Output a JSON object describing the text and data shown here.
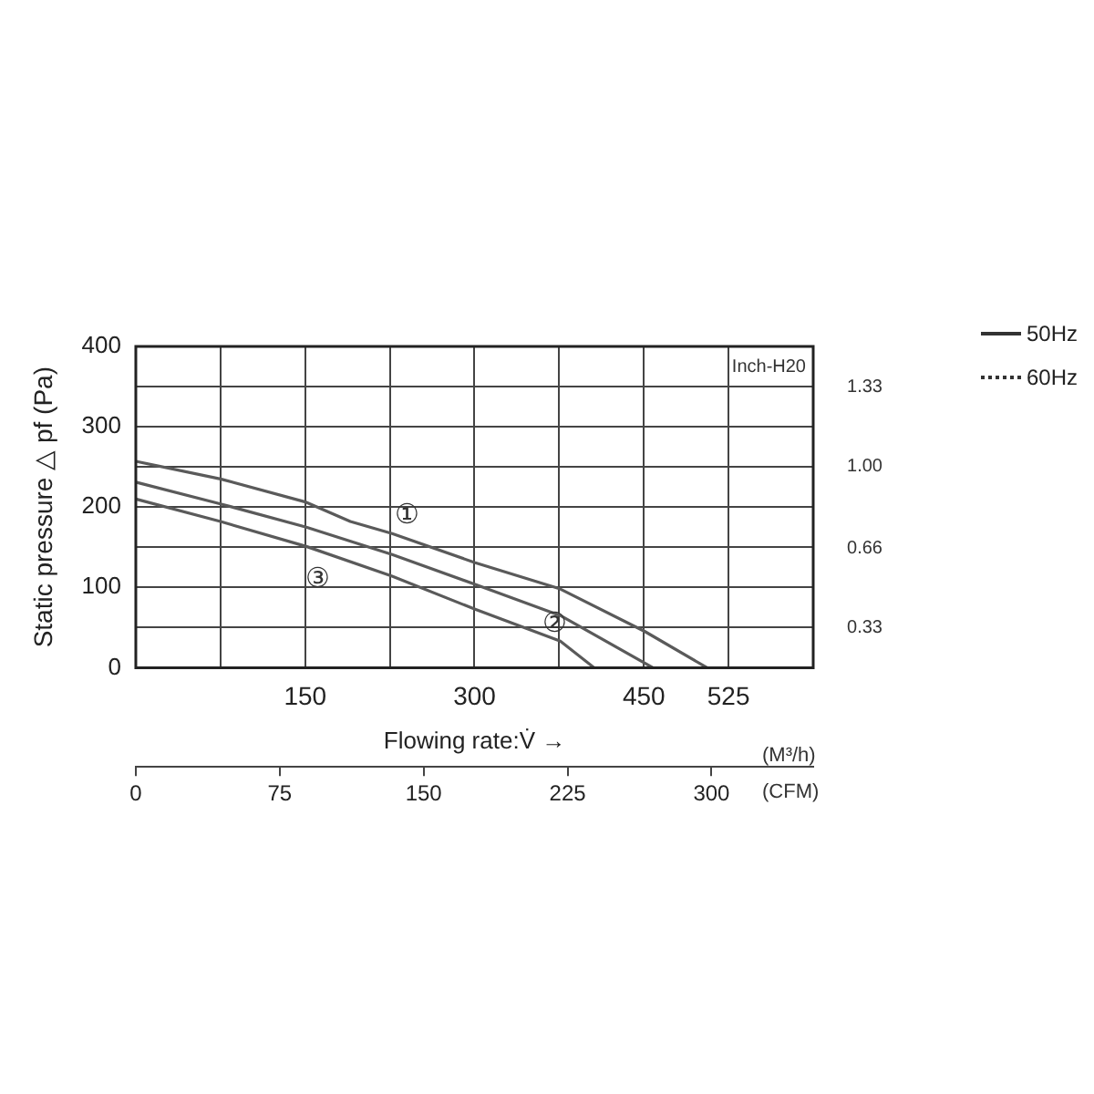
{
  "chart_data": {
    "type": "line",
    "ylabel": "Static pressure △ pf (Pa)",
    "xlabel": "Flowing rate:V̇ →",
    "x2label": "(CFM)",
    "y2label": "Inch-H20",
    "annotations": [
      "(M³/h)",
      "50Hz",
      "60Hz"
    ],
    "xlim": [
      0,
      600
    ],
    "xticks": [
      {
        "value": 0,
        "label": null
      },
      {
        "value": 75,
        "label": null
      },
      150,
      {
        "value": 225,
        "label": null
      },
      300,
      {
        "value": 375,
        "label": null
      },
      450,
      525,
      {
        "value": 600,
        "label": null
      }
    ],
    "x2lim": [
      0,
      353
    ],
    "x2ticks": [
      0,
      75,
      150,
      225,
      300
    ],
    "ylim": [
      0,
      400
    ],
    "yticks": [
      0,
      {
        "value": 50,
        "label": null
      },
      100,
      {
        "value": 150,
        "label": null
      },
      200,
      {
        "value": 250,
        "label": null
      },
      300,
      {
        "value": 350,
        "label": null
      },
      400
    ],
    "y2lim": [
      0.165,
      1.5
    ],
    "y2ticks": [
      0.33,
      0.66,
      {
        "value": 1.0,
        "label": "1.00"
      },
      1.33
    ],
    "grid": true,
    "marker": "none",
    "line_style": "solid",
    "legend": false,
    "series": [
      {
        "name": "①",
        "color": "#5a5a5a",
        "x": [
          0,
          75,
          151,
          190,
          227,
          300,
          376,
          451,
          506
        ],
        "values": [
          257,
          235,
          206,
          182,
          167,
          131,
          98,
          45,
          0
        ]
      },
      {
        "name": "②",
        "color": "#5a5a5a",
        "x": [
          0,
          75,
          151,
          227,
          300,
          376,
          458
        ],
        "values": [
          231,
          204,
          175,
          141,
          104,
          65,
          0
        ]
      },
      {
        "name": "③",
        "color": "#5a5a5a",
        "x": [
          0,
          75,
          151,
          227,
          300,
          376,
          406
        ],
        "values": [
          210,
          182,
          151,
          114,
          73,
          33,
          0
        ]
      }
    ]
  }
}
